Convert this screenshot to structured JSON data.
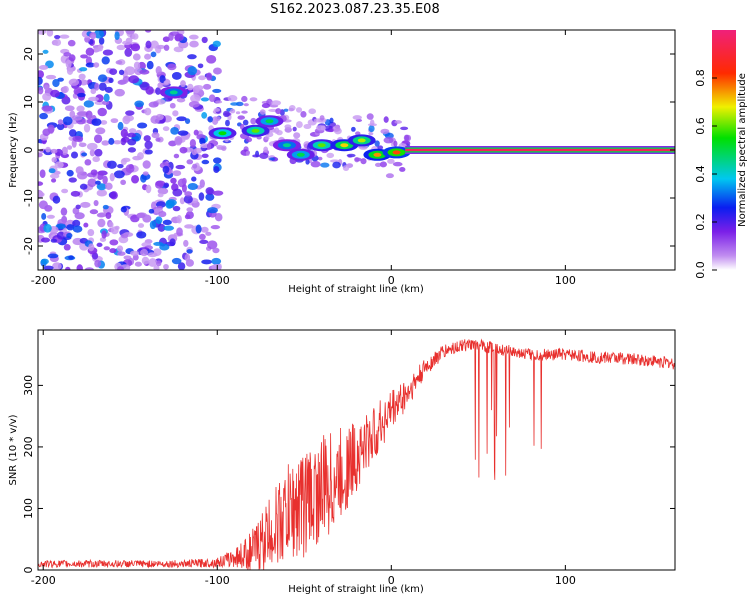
{
  "title": "S162.2023.087.23.35.E08",
  "colors": {
    "snr_line": "#e8302e",
    "mode_track": "#d9205a",
    "background": "#ffffff"
  },
  "chart_data": [
    {
      "type": "heatmap",
      "title": "S162.2023.087.23.35.E08",
      "xlabel": "Height of straight line (km)",
      "ylabel": "Frequency (Hz)",
      "xlim": [
        -203,
        163
      ],
      "ylim": [
        -25,
        25
      ],
      "x_ticks": [
        -200,
        -100,
        0,
        100
      ],
      "x_tick_labels": [
        "-200",
        "-100",
        "0",
        "100"
      ],
      "y_ticks": [
        -20,
        -10,
        0,
        10,
        20
      ],
      "y_tick_labels": [
        "-20",
        "-10",
        "0",
        "10",
        "20"
      ],
      "colorbar": {
        "label": "Normalized spectral amplitude",
        "range": [
          0,
          1
        ],
        "ticks": [
          0.0,
          0.2,
          0.4,
          0.6,
          0.8
        ],
        "tick_labels": [
          "0.0",
          "0.2",
          "0.4",
          "0.6",
          "0.8"
        ],
        "colormap": "rainbow (white-violet-blue-cyan-green-yellow-red-magenta)"
      },
      "features": {
        "noise_region_x": [
          -203,
          -105
        ],
        "dominant_line": {
          "x_start": 8,
          "x_end": 163,
          "frequency_hz": 0,
          "amplitude": 0.95
        },
        "blobs": [
          {
            "x": -125,
            "y": 12,
            "amp": 0.45
          },
          {
            "x": -97,
            "y": 3.5,
            "amp": 0.55
          },
          {
            "x": -78,
            "y": 4,
            "amp": 0.6
          },
          {
            "x": -70,
            "y": 6,
            "amp": 0.5
          },
          {
            "x": -60,
            "y": 1,
            "amp": 0.45
          },
          {
            "x": -52,
            "y": -1,
            "amp": 0.5
          },
          {
            "x": -40,
            "y": 1,
            "amp": 0.6
          },
          {
            "x": -27,
            "y": 1,
            "amp": 0.7
          },
          {
            "x": -17,
            "y": 2,
            "amp": 0.65
          },
          {
            "x": -8,
            "y": -1,
            "amp": 0.75
          },
          {
            "x": 3,
            "y": -0.5,
            "amp": 0.8
          }
        ]
      }
    },
    {
      "type": "line",
      "xlabel": "Height of straight line (km)",
      "ylabel": "SNR (10 * v/v)",
      "xlim": [
        -203,
        163
      ],
      "ylim": [
        0,
        390
      ],
      "x_ticks": [
        -200,
        -100,
        0,
        100
      ],
      "x_tick_labels": [
        "-200",
        "-100",
        "0",
        "100"
      ],
      "y_ticks": [
        0,
        100,
        200,
        300
      ],
      "y_tick_labels": [
        "0",
        "100",
        "200",
        "300"
      ],
      "series": [
        {
          "x": [
            -203,
            -180,
            -150,
            -120,
            -100,
            -90,
            -80,
            -70,
            -60,
            -50,
            -40,
            -30,
            -20,
            -10,
            0,
            10,
            20,
            30,
            40,
            50,
            60,
            70,
            80,
            90,
            100,
            110,
            120,
            130,
            140,
            150,
            163
          ],
          "values": [
            10,
            10,
            10,
            10,
            12,
            20,
            30,
            60,
            90,
            110,
            130,
            150,
            185,
            220,
            260,
            290,
            330,
            355,
            365,
            365,
            360,
            355,
            350,
            350,
            350,
            348,
            345,
            345,
            342,
            340,
            335
          ],
          "noise_amp": [
            6,
            6,
            6,
            6,
            8,
            15,
            35,
            60,
            80,
            90,
            90,
            80,
            60,
            45,
            35,
            25,
            15,
            12,
            10,
            10,
            10,
            10,
            10,
            10,
            10,
            10,
            10,
            10,
            10,
            10,
            10
          ]
        }
      ],
      "dropouts": {
        "x_range": [
          40,
          98
        ],
        "min_value": 130
      }
    }
  ]
}
